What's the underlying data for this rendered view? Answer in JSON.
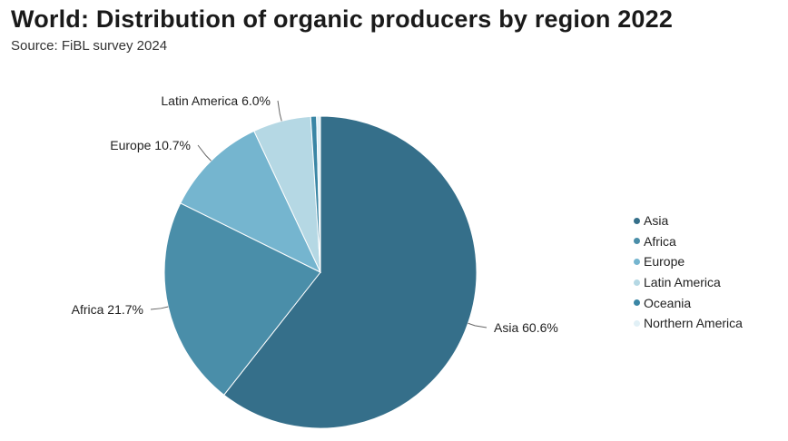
{
  "title": "World: Distribution of organic producers by region 2022",
  "subtitle": "Source: FiBL survey 2024",
  "chart_data": {
    "type": "pie",
    "title": "World: Distribution of organic producers by region 2022",
    "subtitle": "Source: FiBL survey 2024",
    "unit": "%",
    "slices": [
      {
        "name": "Asia",
        "value": 60.6,
        "label": "Asia 60.6%",
        "color": "#356f8a"
      },
      {
        "name": "Africa",
        "value": 21.7,
        "label": "Africa 21.7%",
        "color": "#4a8ea9"
      },
      {
        "name": "Europe",
        "value": 10.7,
        "label": "Europe 10.7%",
        "color": "#75b5cf"
      },
      {
        "name": "Latin America",
        "value": 6.0,
        "label": "Latin America 6.0%",
        "color": "#b5d8e4"
      },
      {
        "name": "Oceania",
        "value": 0.6,
        "label": "",
        "color": "#3a86a5"
      },
      {
        "name": "Northern America",
        "value": 0.4,
        "label": "",
        "color": "#e1f0f6"
      }
    ],
    "legend_position": "right"
  },
  "legend": {
    "items": [
      {
        "label": "Asia",
        "color": "#356f8a"
      },
      {
        "label": "Africa",
        "color": "#4a8ea9"
      },
      {
        "label": "Europe",
        "color": "#75b5cf"
      },
      {
        "label": "Latin America",
        "color": "#b5d8e4"
      },
      {
        "label": "Oceania",
        "color": "#3a86a5"
      },
      {
        "label": "Northern America",
        "color": "#e1f0f6"
      }
    ]
  }
}
